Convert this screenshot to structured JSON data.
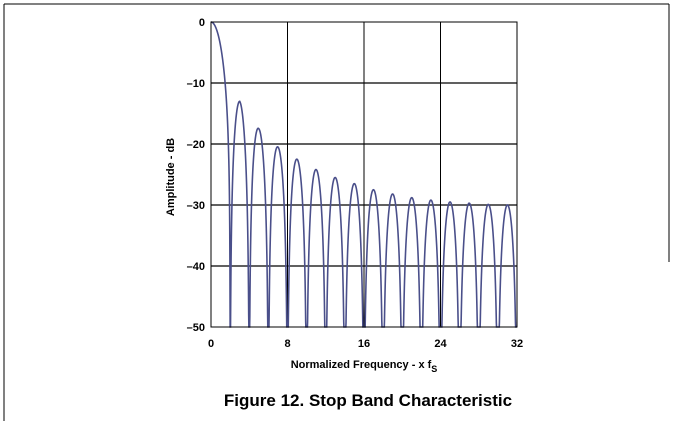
{
  "chart_data": {
    "type": "line",
    "xlabel": "Normalized Frequency - x f",
    "xlabel_subscript": "S",
    "ylabel": "Amplitude - dB",
    "xlim": [
      0,
      32
    ],
    "ylim": [
      -50,
      0
    ],
    "x_ticks": [
      0,
      8,
      16,
      24,
      32
    ],
    "x_tick_labels": [
      "0",
      "8",
      "16",
      "24",
      "32"
    ],
    "y_ticks": [
      0,
      -10,
      -20,
      -30,
      -40,
      -50
    ],
    "y_tick_labels": [
      "0",
      "–10",
      "–20",
      "–30",
      "–40",
      "–50"
    ],
    "grid": true,
    "line_color": "#4a4f8a",
    "nulls_x": [
      2,
      4,
      6,
      8,
      10,
      12,
      14,
      16,
      18,
      20,
      22,
      24,
      26,
      28,
      30,
      32
    ],
    "lobe_peaks": [
      {
        "x": 3,
        "y": -13
      },
      {
        "x": 5,
        "y": -17.5
      },
      {
        "x": 7,
        "y": -20.5
      },
      {
        "x": 9,
        "y": -22.5
      },
      {
        "x": 11,
        "y": -24.2
      },
      {
        "x": 13,
        "y": -25.5
      },
      {
        "x": 15,
        "y": -26.5
      },
      {
        "x": 17,
        "y": -27.5
      },
      {
        "x": 19,
        "y": -28.2
      },
      {
        "x": 21,
        "y": -28.8
      },
      {
        "x": 23,
        "y": -29.2
      },
      {
        "x": 25,
        "y": -29.5
      },
      {
        "x": 27,
        "y": -29.7
      },
      {
        "x": 29,
        "y": -29.9
      },
      {
        "x": 31,
        "y": -30
      }
    ]
  },
  "caption": "Figure 12. Stop Band Characteristic"
}
